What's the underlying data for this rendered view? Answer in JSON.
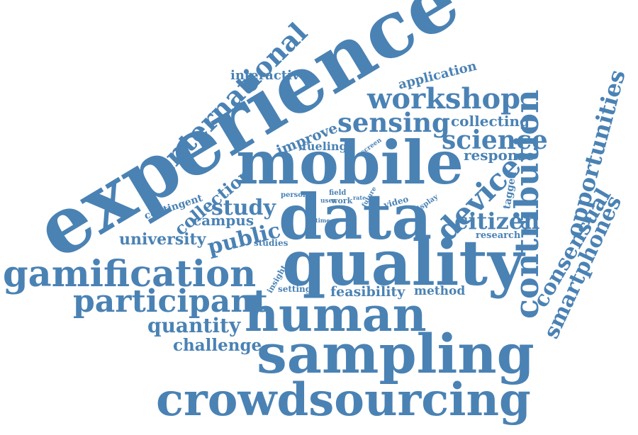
{
  "color": "#4a82b4",
  "words": [
    {
      "text": "experience"
    },
    {
      "text": "mobile"
    },
    {
      "text": "data"
    },
    {
      "text": "quality"
    },
    {
      "text": "human"
    },
    {
      "text": "sampling"
    },
    {
      "text": "crowdsourcing"
    },
    {
      "text": "contribution"
    },
    {
      "text": "gamification"
    },
    {
      "text": "participant"
    },
    {
      "text": "international"
    },
    {
      "text": "workshop"
    },
    {
      "text": "sensing"
    },
    {
      "text": "science"
    },
    {
      "text": "device"
    },
    {
      "text": "citizen"
    },
    {
      "text": "opportunities"
    },
    {
      "text": "consensual"
    },
    {
      "text": "smartphones"
    },
    {
      "text": "study"
    },
    {
      "text": "public"
    },
    {
      "text": "university"
    },
    {
      "text": "quantity"
    },
    {
      "text": "challenge"
    },
    {
      "text": "collection"
    },
    {
      "text": "campus"
    },
    {
      "text": "interactive"
    },
    {
      "text": "application"
    },
    {
      "text": "collecting"
    },
    {
      "text": "response"
    },
    {
      "text": "improve"
    },
    {
      "text": "fueling"
    },
    {
      "text": "contingent"
    },
    {
      "text": "feasibility"
    },
    {
      "text": "method"
    },
    {
      "text": "tagged"
    },
    {
      "text": "research"
    },
    {
      "text": "setting"
    },
    {
      "text": "insight"
    },
    {
      "text": "studies"
    },
    {
      "text": "person"
    },
    {
      "text": "field"
    },
    {
      "text": "user"
    },
    {
      "text": "work"
    },
    {
      "text": "rate"
    },
    {
      "text": "future"
    },
    {
      "text": "video"
    },
    {
      "text": "display"
    },
    {
      "text": "time"
    },
    {
      "text": "screen"
    }
  ]
}
